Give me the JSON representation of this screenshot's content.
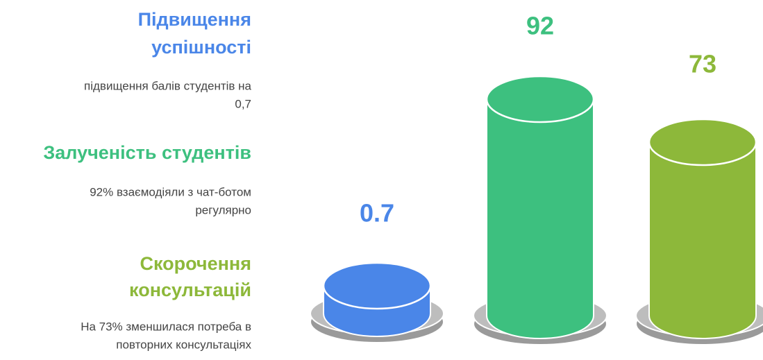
{
  "items": [
    {
      "title": [
        "Підвищення",
        "успішності"
      ],
      "description": [
        "підвищення балів студентів на",
        "0,7"
      ],
      "value": "0.7"
    },
    {
      "title": [
        "Залученість студентів"
      ],
      "description": [
        "92% взаємодіяли з чат-ботом",
        "регулярно"
      ],
      "value": "92"
    },
    {
      "title": [
        "Скорочення",
        "консультацій"
      ],
      "description": [
        "На 73% зменшилася потреба в",
        "повторних консультаціях"
      ],
      "value": "73"
    }
  ]
}
